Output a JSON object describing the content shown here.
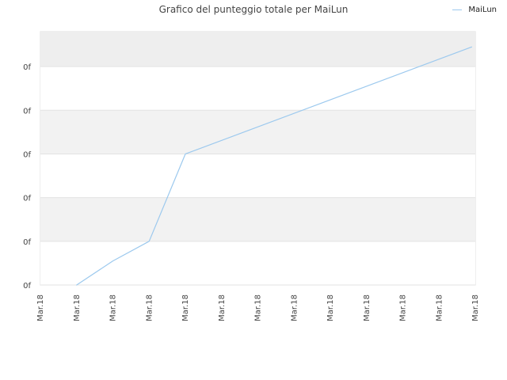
{
  "chart_data": {
    "type": "line",
    "title": "Grafico del punteggio totale per MaiLun",
    "xlabel": "",
    "ylabel": "",
    "x_tick_labels": [
      "Mar.18",
      "Mar.18",
      "Mar.18",
      "Mar.18",
      "Mar.18",
      "Mar.18",
      "Mar.18",
      "Mar.18",
      "Mar.18",
      "Mar.18",
      "Mar.18",
      "Mar.18",
      "Mar.18"
    ],
    "y_tick_labels": [
      "0f",
      "0f",
      "0f",
      "0f",
      "0f",
      "0f"
    ],
    "xlim": [
      0,
      12
    ],
    "ylim": [
      0,
      5.8
    ],
    "grid": true,
    "legend_position": "top-right",
    "series": [
      {
        "name": "MaiLun",
        "color": "#9cc9ee",
        "x": [
          1,
          2,
          3,
          4,
          11.9
        ],
        "y": [
          0,
          0.55,
          1.0,
          3.0,
          5.45
        ]
      }
    ]
  }
}
